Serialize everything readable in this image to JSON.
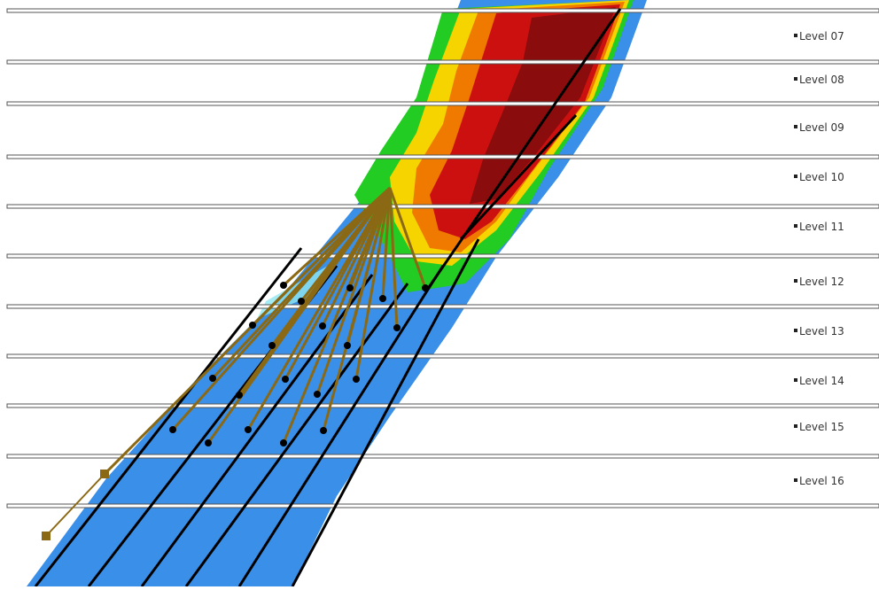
{
  "levels": [
    {
      "label": "Level 07"
    },
    {
      "label": "Level 08"
    },
    {
      "label": "Level 09"
    },
    {
      "label": "Level 10"
    },
    {
      "label": "Level 11"
    },
    {
      "label": "Level 12"
    },
    {
      "label": "Level 13"
    },
    {
      "label": "Level 14"
    },
    {
      "label": "Level 15"
    },
    {
      "label": "Level 16"
    }
  ],
  "colors": {
    "background": "#ffffff",
    "level_line": "#555555",
    "orebody_low": "#3a8fe8",
    "orebody_mid_green": "#22cc22",
    "orebody_mid_yellow": "#f5d400",
    "orebody_high_orange": "#f07a00",
    "orebody_max_red": "#cc1010",
    "orebody_core": "#8a0c0c",
    "drillhole": "#8b6914",
    "collar_marker": "#8b6914",
    "ring_line": "#000000",
    "intersection_dot": "#000000"
  }
}
